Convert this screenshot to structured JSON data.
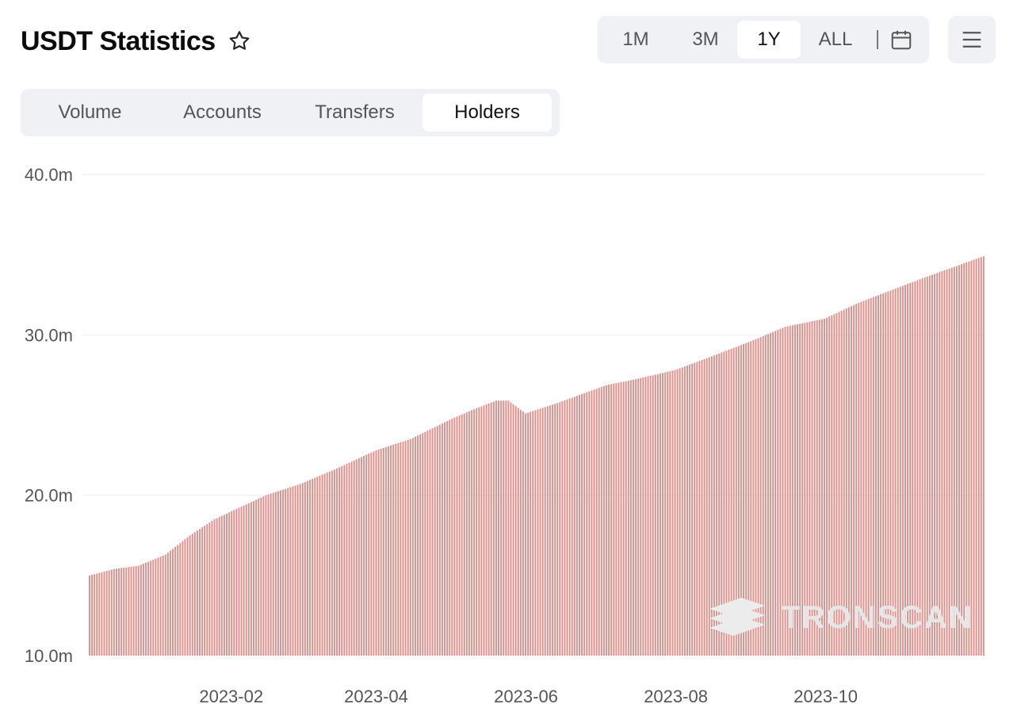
{
  "header": {
    "title": "USDT Statistics"
  },
  "icons": {
    "favorite": "star-icon",
    "calendar": "calendar-icon",
    "menu": "menu-icon"
  },
  "range": {
    "options": [
      "1M",
      "3M",
      "1Y",
      "ALL"
    ],
    "selected": "1Y"
  },
  "tabs": {
    "items": [
      "Volume",
      "Accounts",
      "Transfers",
      "Holders"
    ],
    "selected": "Holders"
  },
  "watermark": "TRONSCAN",
  "colors": {
    "bar": "#dd8f8c",
    "grid": "#eeeeee",
    "accent": "#c23631"
  },
  "chart_data": {
    "type": "bar",
    "title": "",
    "xlabel": "",
    "ylabel": "",
    "y_unit": "m",
    "ylim": [
      10,
      40
    ],
    "yticks": [
      "10.0m",
      "20.0m",
      "30.0m",
      "40.0m"
    ],
    "x_range": [
      "2022-12-05",
      "2023-12-05"
    ],
    "xticks": [
      "2023-02",
      "2023-04",
      "2023-06",
      "2023-08",
      "2023-10"
    ],
    "grid": true,
    "legend": "none",
    "series": [
      {
        "x": [
          "2022-12-05",
          "2022-12-15",
          "2022-12-25",
          "2023-01-05",
          "2023-01-15",
          "2023-01-25",
          "2023-02-01",
          "2023-02-15",
          "2023-03-01",
          "2023-03-15",
          "2023-04-01",
          "2023-04-15",
          "2023-05-01",
          "2023-05-10",
          "2023-05-20",
          "2023-05-25",
          "2023-06-01",
          "2023-06-15",
          "2023-07-01",
          "2023-07-05",
          "2023-07-15",
          "2023-08-01",
          "2023-08-15",
          "2023-09-01",
          "2023-09-15",
          "2023-10-01",
          "2023-10-15",
          "2023-11-01",
          "2023-11-15",
          "2023-12-05"
        ],
        "values": [
          15.0,
          15.4,
          15.6,
          16.3,
          17.5,
          18.5,
          19.0,
          20.0,
          20.7,
          21.6,
          22.8,
          23.5,
          24.7,
          25.3,
          25.9,
          25.9,
          25.1,
          25.8,
          26.7,
          26.9,
          27.2,
          27.8,
          28.6,
          29.6,
          30.5,
          31.0,
          32.0,
          33.0,
          33.8,
          34.9
        ]
      }
    ]
  }
}
